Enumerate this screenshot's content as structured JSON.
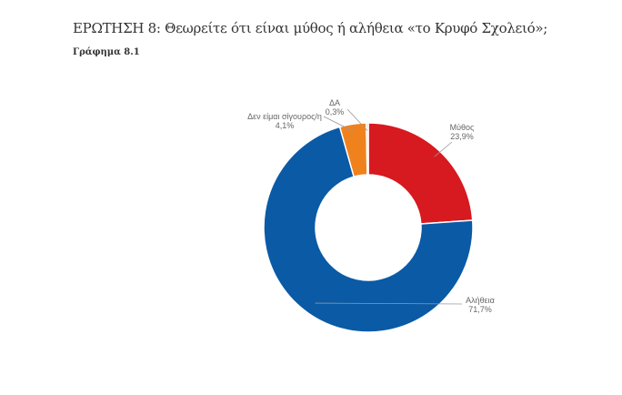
{
  "title": "ΕΡΩΤΗΣΗ 8: Θεωρείτε ότι είναι μύθος ή αλήθεια  «το Κρυφό Σχολειό»;",
  "subtitle": "Γράφημα 8.1",
  "chart_data": {
    "type": "pie",
    "donut": true,
    "categories": [
      "Μύθος",
      "Αλήθεια",
      "Δεν είμαι σίγουρος/η",
      "ΔΑ"
    ],
    "values": [
      23.9,
      71.7,
      4.1,
      0.3
    ],
    "value_labels": [
      "23,9%",
      "71,7%",
      "4,1%",
      "0,3%"
    ],
    "colors": [
      "#d71920",
      "#0a5aa6",
      "#f0821e",
      "#f5c48a"
    ]
  }
}
